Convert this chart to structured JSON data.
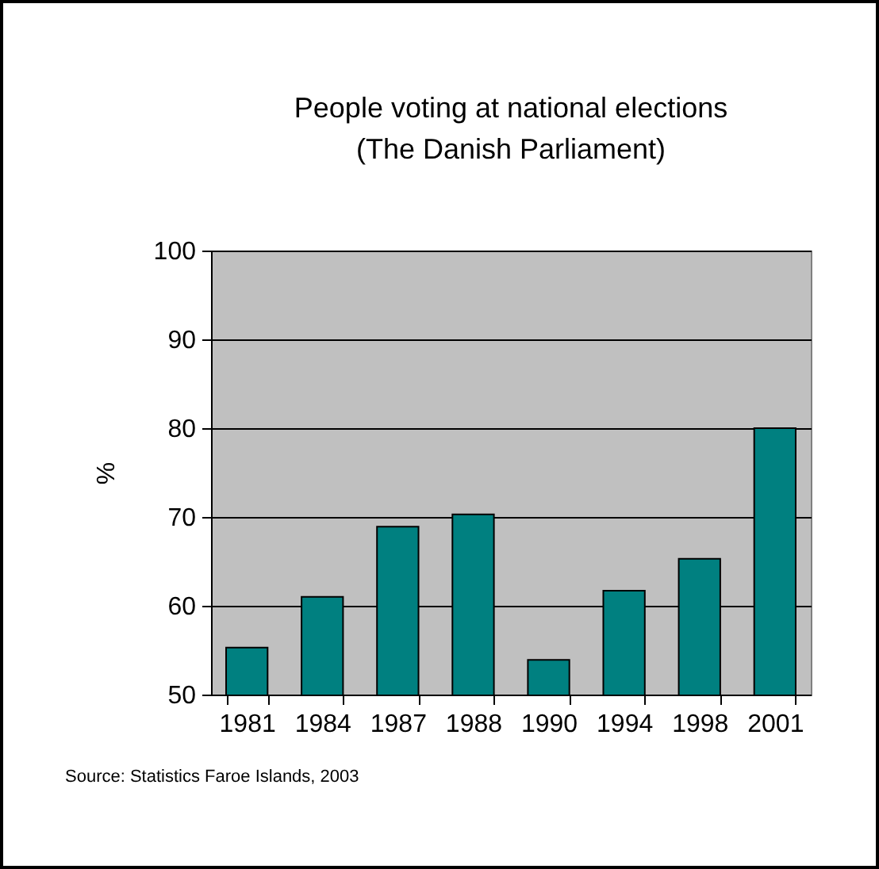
{
  "chart_data": {
    "type": "bar",
    "title": "People voting at national elections",
    "subtitle": "(The Danish Parliament)",
    "ylabel": "%",
    "categories": [
      "1981",
      "1984",
      "1987",
      "1988",
      "1990",
      "1994",
      "1998",
      "2001"
    ],
    "values": [
      55.3,
      61.0,
      68.9,
      70.3,
      53.9,
      61.7,
      65.3,
      80.0
    ],
    "color": "#008080",
    "ylim": [
      50,
      100
    ],
    "yticks": [
      50,
      60,
      70,
      80,
      90,
      100
    ],
    "grid": "y",
    "annotations": [
      "Source: Statistics Faroe Islands, 2003"
    ]
  }
}
